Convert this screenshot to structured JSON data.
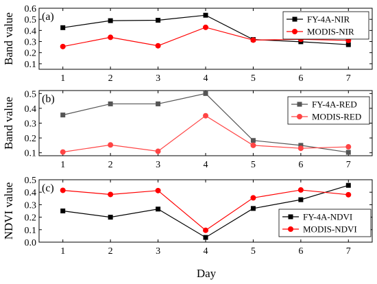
{
  "x_axis_title": "Day",
  "chart_data": [
    {
      "type": "line",
      "panel_label": "(a)",
      "ylabel": "Band value",
      "x": [
        1,
        2,
        3,
        4,
        5,
        6,
        7
      ],
      "ylim": [
        0.05,
        0.6
      ],
      "yticks": [
        "0.1",
        "0.2",
        "0.3",
        "0.4",
        "0.5",
        "0.6"
      ],
      "ytick_values": [
        0.1,
        0.2,
        0.3,
        0.4,
        0.5,
        0.6
      ],
      "legend_position": "top-right",
      "series": [
        {
          "name": "FY-4A-NIR",
          "color": "#000000",
          "marker": "square",
          "values": [
            0.425,
            0.488,
            0.492,
            0.537,
            0.318,
            0.298,
            0.272
          ]
        },
        {
          "name": "MODIS-NIR",
          "color": "#ff0000",
          "marker": "circle",
          "values": [
            0.255,
            0.338,
            0.262,
            0.428,
            0.313,
            0.32,
            0.31
          ]
        }
      ]
    },
    {
      "type": "line",
      "panel_label": "(b)",
      "ylabel": "Band value",
      "x": [
        1,
        2,
        3,
        4,
        5,
        6,
        7
      ],
      "ylim": [
        0.08,
        0.52
      ],
      "yticks": [
        "0.1",
        "0.2",
        "0.3",
        "0.4",
        "0.5"
      ],
      "ytick_values": [
        0.1,
        0.2,
        0.3,
        0.4,
        0.5
      ],
      "legend_position": "top-right",
      "series": [
        {
          "name": "FY-4A-RED",
          "color": "#555555",
          "marker": "square",
          "values": [
            0.355,
            0.43,
            0.43,
            0.5,
            0.183,
            0.15,
            0.103
          ]
        },
        {
          "name": "MODIS-RED",
          "color": "#ff4444",
          "marker": "circle",
          "values": [
            0.105,
            0.153,
            0.11,
            0.35,
            0.15,
            0.13,
            0.14
          ]
        }
      ]
    },
    {
      "type": "line",
      "panel_label": "(c)",
      "ylabel": "NDVI value",
      "xlabel": "Day",
      "x": [
        1,
        2,
        3,
        4,
        5,
        6,
        7
      ],
      "ylim": [
        0.0,
        0.5
      ],
      "yticks": [
        "0.0",
        "0.1",
        "0.2",
        "0.3",
        "0.4",
        "0.5"
      ],
      "ytick_values": [
        0.0,
        0.1,
        0.2,
        0.3,
        0.4,
        0.5
      ],
      "legend_position": "bottom-right",
      "series": [
        {
          "name": "FY-4A-NDVI",
          "color": "#000000",
          "marker": "square",
          "values": [
            0.25,
            0.2,
            0.265,
            0.038,
            0.27,
            0.34,
            0.455
          ]
        },
        {
          "name": "MODIS-NDVI",
          "color": "#ff0000",
          "marker": "circle",
          "values": [
            0.415,
            0.382,
            0.413,
            0.095,
            0.355,
            0.418,
            0.38
          ]
        }
      ]
    }
  ]
}
